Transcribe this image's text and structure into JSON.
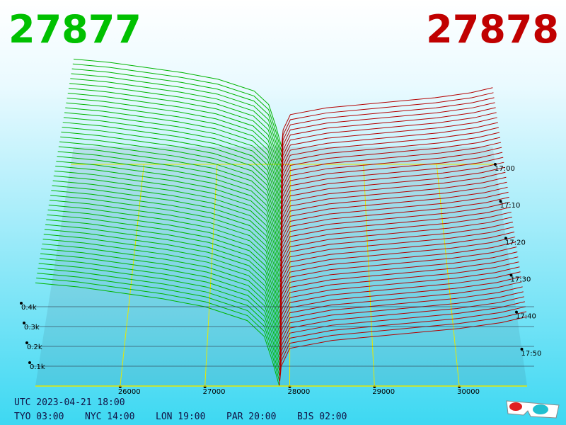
{
  "header": {
    "bid": "27877",
    "ask": "27878"
  },
  "chart_data": {
    "type": "depth3d",
    "xlim": [
      25000,
      30800
    ],
    "xticks": [
      26000,
      27000,
      28000,
      29000,
      30000
    ],
    "ylim": [
      0,
      550
    ],
    "yticks": [
      {
        "value": 100,
        "label": "0.1k"
      },
      {
        "value": 200,
        "label": "0.2k"
      },
      {
        "value": 300,
        "label": "0.3k"
      },
      {
        "value": 400,
        "label": "0.4k"
      }
    ],
    "time_ticks": [
      "17:00",
      "17:10",
      "17:20",
      "17:30",
      "17:40",
      "17:50"
    ],
    "series": [
      {
        "color": "#00b400",
        "x": [
          25000,
          25500,
          26000,
          26500,
          27000,
          27500,
          27700,
          27800,
          27877
        ],
        "values": [
          520,
          500,
          470,
          440,
          400,
          330,
          250,
          120,
          0
        ]
      },
      {
        "color": "#b40000",
        "x": [
          27878,
          27900,
          28000,
          28500,
          29000,
          29500,
          30000,
          30500,
          30800
        ],
        "values": [
          0,
          100,
          190,
          230,
          250,
          270,
          290,
          320,
          350
        ]
      }
    ]
  },
  "footer": {
    "utc": "UTC 2023-04-21 18:00",
    "clocks": [
      "TYO 03:00",
      "NYC 14:00",
      "LON 19:00",
      "PAR 20:00",
      "BJS 02:00"
    ]
  }
}
